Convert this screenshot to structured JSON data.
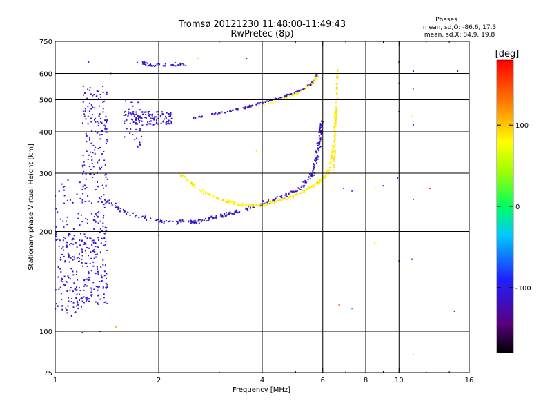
{
  "header": {
    "title": "Tromsø 20121230 11:48:00-11:49:43",
    "subtitle": "RwPretec (8p)",
    "stats_heading": "Phases",
    "stats_o": "mean, sd,O: -86.6, 17.3",
    "stats_x": "mean, sd,X: 84.9, 19.8"
  },
  "colorbar": {
    "unit_label": "[deg]",
    "range": [
      -180,
      180
    ],
    "ticks": [
      {
        "label": "100",
        "value": 100
      },
      {
        "label": "0",
        "value": 0
      },
      {
        "label": "-100",
        "value": -100
      }
    ]
  },
  "chart_data": {
    "type": "scatter",
    "title": "Tromsø 20121230 11:48:00-11:49:43",
    "subtitle": "RwPretec (8p)",
    "xlabel": "Frequency [MHz]",
    "ylabel": "Stationary phase Virtual Height [km]",
    "x_scale": "log",
    "y_scale": "log",
    "xlim": [
      1,
      16
    ],
    "ylim": [
      75,
      750
    ],
    "x_ticks": [
      {
        "label": "1",
        "value": 1
      },
      {
        "label": "2",
        "value": 2
      },
      {
        "label": "4",
        "value": 4
      },
      {
        "label": "6",
        "value": 6
      },
      {
        "label": "8",
        "value": 8
      },
      {
        "label": "10",
        "value": 10
      },
      {
        "label": "16",
        "value": 16
      }
    ],
    "x_gridlines": [
      2,
      4,
      6,
      8,
      10
    ],
    "x_minor_ticks": [
      3,
      5,
      7,
      9,
      12,
      14
    ],
    "y_ticks": [
      {
        "label": "750",
        "value": 750
      },
      {
        "label": "600",
        "value": 600
      },
      {
        "label": "500",
        "value": 500
      },
      {
        "label": "400",
        "value": 400
      },
      {
        "label": "300",
        "value": 300
      },
      {
        "label": "200",
        "value": 200
      },
      {
        "label": "100",
        "value": 100
      },
      {
        "label": "75",
        "value": 75
      }
    ],
    "y_gridlines": [
      600,
      500,
      400,
      300,
      200,
      100
    ],
    "grid": true,
    "color_scale": "rainbow phase (-180 black/purple → blue → cyan → green → yellow → red 180)",
    "traces": [
      {
        "kind": "band",
        "x": [
          1.0,
          1.2
        ],
        "y": [
          110,
          200
        ],
        "phase": -110,
        "count": 140,
        "spread": 0.02
      },
      {
        "kind": "band",
        "x": [
          1.2,
          1.42
        ],
        "y": [
          120,
          560
        ],
        "phase": -105,
        "count": 320,
        "spread": 0.02
      },
      {
        "kind": "band",
        "x": [
          1.58,
          2.2
        ],
        "y": [
          420,
          460
        ],
        "phase": -110,
        "count": 110,
        "spread": 0.01
      },
      {
        "kind": "band",
        "x": [
          1.58,
          1.8
        ],
        "y": [
          360,
          500
        ],
        "phase": -105,
        "count": 40,
        "spread": 0.01
      },
      {
        "kind": "band",
        "x": [
          1.7,
          2.4
        ],
        "y": [
          630,
          650
        ],
        "phase": -110,
        "count": 40,
        "spread": 0.005
      },
      {
        "kind": "band",
        "x": [
          1.0,
          1.2
        ],
        "y": [
          200,
          290
        ],
        "phase": -105,
        "count": 30,
        "spread": 0.02
      },
      {
        "kind": "curve",
        "pts": [
          [
            1.4,
            250
          ],
          [
            1.6,
            228
          ],
          [
            2.0,
            215
          ],
          [
            2.5,
            213
          ],
          [
            3.0,
            222
          ],
          [
            3.5,
            232
          ],
          [
            4.0,
            242
          ],
          [
            4.6,
            255
          ],
          [
            5.2,
            272
          ],
          [
            5.6,
            300
          ],
          [
            5.8,
            340
          ],
          [
            5.9,
            390
          ],
          [
            5.95,
            430
          ]
        ],
        "phase": -112,
        "count": 320,
        "spread": 0.02
      },
      {
        "kind": "curve",
        "pts": [
          [
            2.3,
            300
          ],
          [
            2.6,
            270
          ],
          [
            3.0,
            250
          ],
          [
            3.5,
            240
          ],
          [
            4.0,
            240
          ],
          [
            4.6,
            250
          ],
          [
            5.2,
            262
          ],
          [
            5.8,
            280
          ],
          [
            6.2,
            300
          ],
          [
            6.4,
            340
          ],
          [
            6.5,
            400
          ],
          [
            6.55,
            460
          ]
        ],
        "phase": 85,
        "count": 300,
        "spread": 0.015
      },
      {
        "kind": "curve",
        "pts": [
          [
            6.45,
            300
          ],
          [
            6.55,
            420
          ],
          [
            6.6,
            520
          ],
          [
            6.62,
            620
          ]
        ],
        "phase": 90,
        "count": 70,
        "spread": 0.008
      },
      {
        "kind": "curve",
        "pts": [
          [
            2.5,
            440
          ],
          [
            3.0,
            455
          ],
          [
            3.5,
            470
          ],
          [
            4.0,
            490
          ],
          [
            4.6,
            510
          ],
          [
            5.2,
            535
          ],
          [
            5.6,
            560
          ],
          [
            5.8,
            600
          ]
        ],
        "phase": -118,
        "count": 130,
        "spread": 0.01
      },
      {
        "kind": "curve",
        "pts": [
          [
            4.0,
            480
          ],
          [
            4.6,
            500
          ],
          [
            5.2,
            530
          ],
          [
            5.6,
            560
          ],
          [
            5.8,
            590
          ]
        ],
        "phase": 80,
        "count": 50,
        "spread": 0.01
      }
    ],
    "scatter_points": [
      {
        "x": 1.25,
        "y": 650,
        "phase": -100
      },
      {
        "x": 1.45,
        "y": 600,
        "phase": -100
      },
      {
        "x": 3.6,
        "y": 665,
        "phase": -120
      },
      {
        "x": 2.6,
        "y": 665,
        "phase": 90
      },
      {
        "x": 10.0,
        "y": 650,
        "phase": -110
      },
      {
        "x": 10.0,
        "y": 560,
        "phase": -100
      },
      {
        "x": 11.0,
        "y": 610,
        "phase": -110
      },
      {
        "x": 11.0,
        "y": 540,
        "phase": 160
      },
      {
        "x": 14.8,
        "y": 610,
        "phase": -110
      },
      {
        "x": 10.0,
        "y": 460,
        "phase": -110
      },
      {
        "x": 10.9,
        "y": 445,
        "phase": 80
      },
      {
        "x": 11.0,
        "y": 420,
        "phase": -100
      },
      {
        "x": 3.85,
        "y": 350,
        "phase": 85
      },
      {
        "x": 6.9,
        "y": 270,
        "phase": -60
      },
      {
        "x": 7.3,
        "y": 265,
        "phase": -70
      },
      {
        "x": 8.5,
        "y": 270,
        "phase": 90
      },
      {
        "x": 9.0,
        "y": 275,
        "phase": -90
      },
      {
        "x": 9.9,
        "y": 290,
        "phase": -90
      },
      {
        "x": 11.0,
        "y": 250,
        "phase": 160
      },
      {
        "x": 12.3,
        "y": 270,
        "phase": 150
      },
      {
        "x": 8.5,
        "y": 185,
        "phase": 90
      },
      {
        "x": 10.0,
        "y": 163,
        "phase": -100
      },
      {
        "x": 10.9,
        "y": 165,
        "phase": -110
      },
      {
        "x": 2.0,
        "y": 195,
        "phase": 170
      },
      {
        "x": 6.7,
        "y": 120,
        "phase": 160
      },
      {
        "x": 7.3,
        "y": 117,
        "phase": -40
      },
      {
        "x": 14.5,
        "y": 115,
        "phase": -100
      },
      {
        "x": 1.5,
        "y": 103,
        "phase": 110
      },
      {
        "x": 1.2,
        "y": 99,
        "phase": -110
      },
      {
        "x": 1.35,
        "y": 100,
        "phase": -80
      },
      {
        "x": 11.0,
        "y": 85,
        "phase": 90
      }
    ]
  }
}
